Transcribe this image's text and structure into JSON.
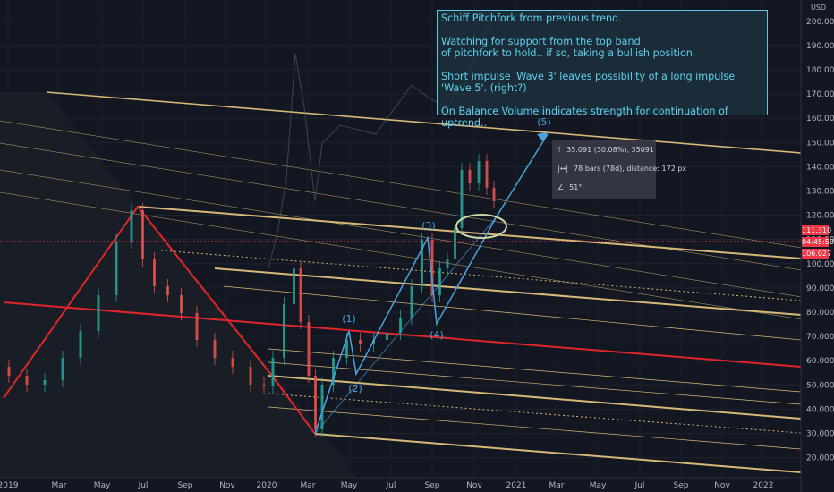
{
  "chart_data": {
    "type": "candlestick",
    "y_axis": {
      "unit": "USD",
      "ticks": [
        "200.000",
        "190.000",
        "180.000",
        "170.000",
        "160.000",
        "150.000",
        "140.000",
        "130.000",
        "120.000",
        "110.000",
        "100.000",
        "90.000",
        "80.000",
        "70.000",
        "60.000",
        "50.000",
        "40.000",
        "30.000",
        "20.000"
      ],
      "range": [
        13,
        205
      ]
    },
    "x_axis": {
      "ticks": [
        "2019",
        "Mar",
        "May",
        "Jul",
        "Sep",
        "Nov",
        "2020",
        "Mar",
        "May",
        "Jul",
        "Sep",
        "Nov",
        "2021",
        "Mar",
        "May",
        "Jul",
        "Sep",
        "Nov",
        "2022"
      ]
    },
    "price_markers": [
      {
        "label": "111.310",
        "value": 111.31,
        "color": "#f23645"
      },
      {
        "label": "04:45:50",
        "value": 106.5,
        "color": "#f23645"
      },
      {
        "label": "106.027",
        "value": 106.03,
        "color": "#f23645"
      }
    ],
    "wave_labels": [
      "(1)",
      "(2)",
      "(3)",
      "(4)",
      "(5)"
    ]
  },
  "annotation": {
    "lines": [
      "Schiff Pitchfork from previous trend.",
      "Watching for support from the top band\nof pitchfork to hold.. if so, taking a bullish position.",
      "Short impulse 'Wave 3' leaves possibility of a long impulse 'Wave 5'. (right?)",
      "On Balance Volume indicates strength for continuation of uptrend.."
    ]
  },
  "measure_tooltip": {
    "price_change": "35.091 (30.08%), 35091",
    "bars": "78 bars (78d), distance: 172 px",
    "angle": "51°"
  },
  "toolbar": {
    "currency": "USD",
    "button": "☰"
  },
  "colors": {
    "background": "#131722",
    "pitchfork_red": "#e0262b",
    "pitchfork_tan": "#d8b878",
    "wave_blue": "#4aa3df",
    "annotation_text": "#5fd0ee"
  }
}
